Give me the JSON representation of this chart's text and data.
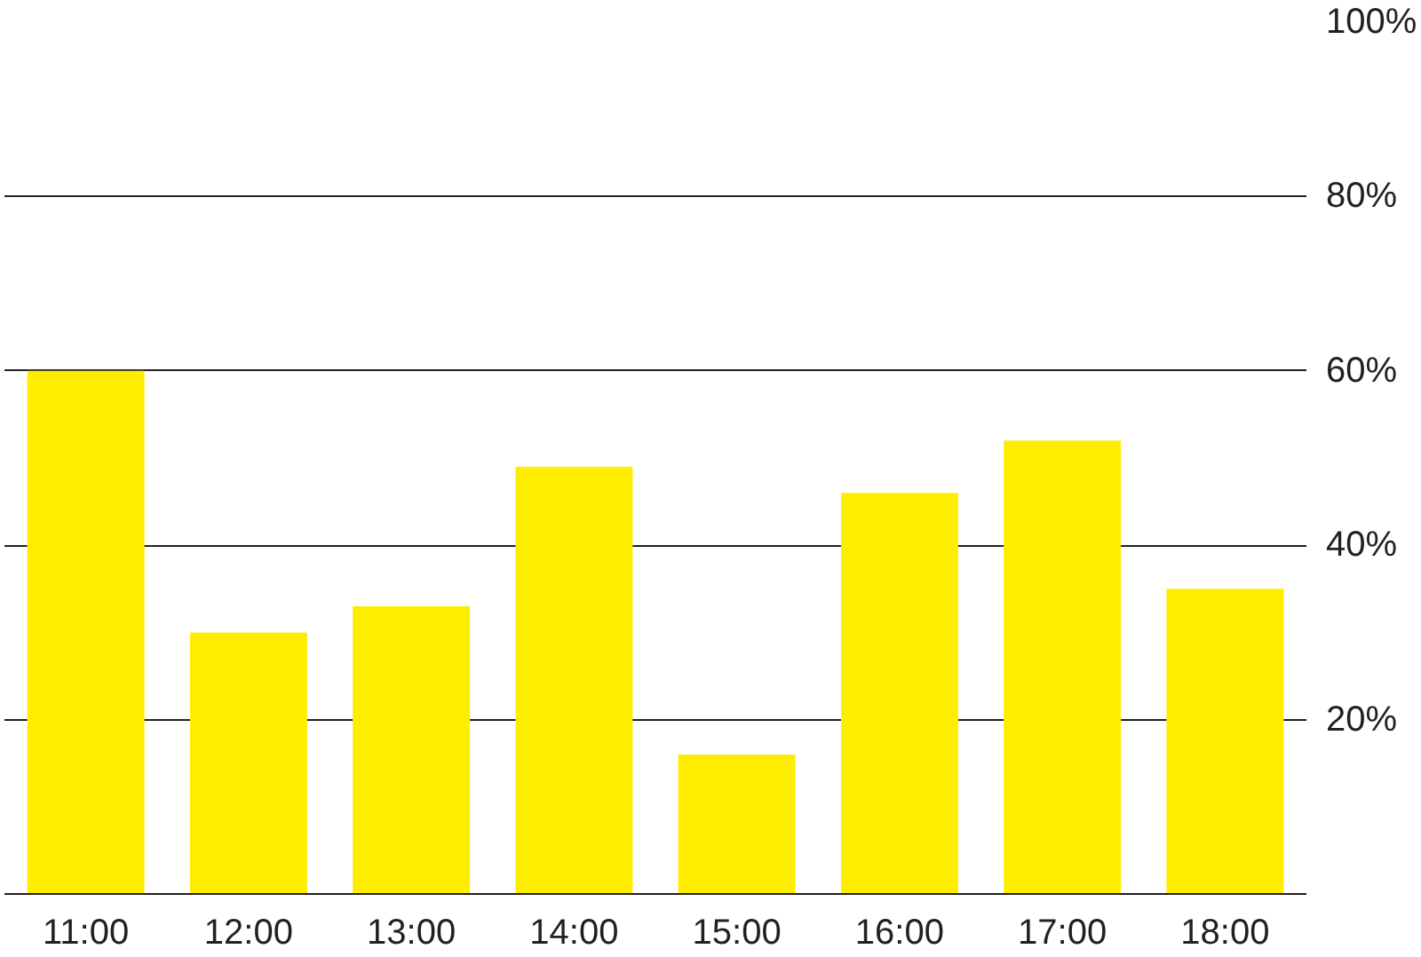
{
  "chart_data": {
    "type": "bar",
    "categories": [
      "11:00",
      "12:00",
      "13:00",
      "14:00",
      "15:00",
      "16:00",
      "17:00",
      "18:00"
    ],
    "values": [
      60,
      30,
      33,
      49,
      16,
      46,
      52,
      35
    ],
    "color": "#ffed00",
    "ylim": [
      0,
      100
    ],
    "yticks": [
      {
        "value": 0,
        "label": null
      },
      {
        "value": 20,
        "label": "20%"
      },
      {
        "value": 40,
        "label": "40%"
      },
      {
        "value": 60,
        "label": "60%"
      },
      {
        "value": 80,
        "label": "80%"
      },
      {
        "value": 100,
        "label": "100%"
      }
    ],
    "grid": "y"
  }
}
